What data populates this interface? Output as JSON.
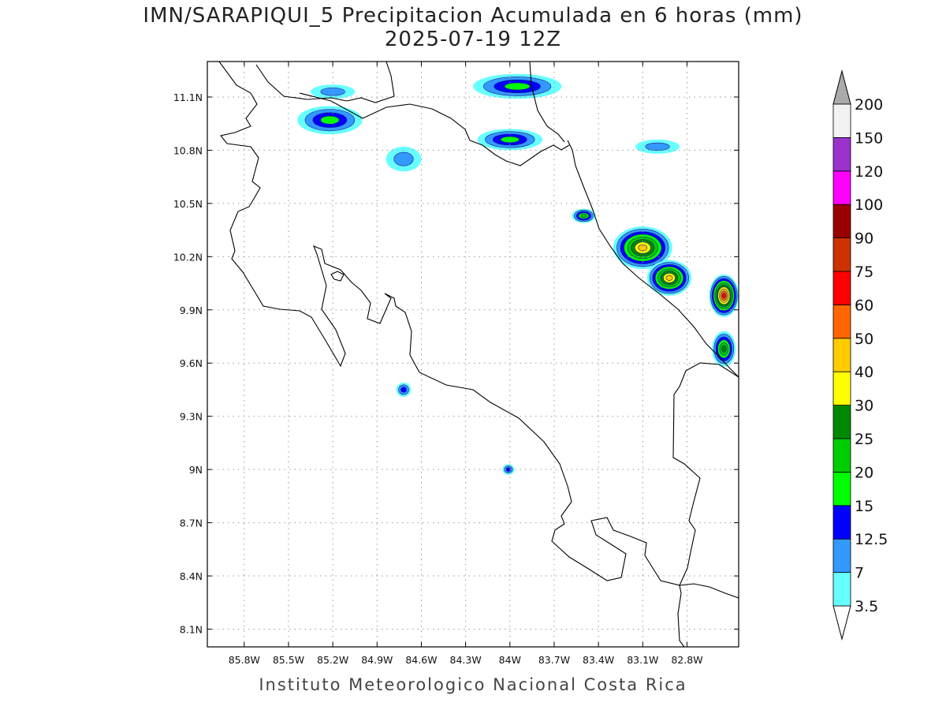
{
  "title": "IMN/SARAPIQUI_5 Precipitacion Acumulada en 6 horas (mm)",
  "subtitle": "2025-07-19 12Z",
  "footer": "Instituto Meteorologico Nacional Costa Rica",
  "map": {
    "lon_range": [
      -86.05,
      -82.45
    ],
    "lat_range": [
      8.0,
      11.3
    ],
    "lat_ticks": [
      {
        "value": 11.1,
        "label": "11.1N"
      },
      {
        "value": 10.8,
        "label": "10.8N"
      },
      {
        "value": 10.5,
        "label": "10.5N"
      },
      {
        "value": 10.2,
        "label": "10.2N"
      },
      {
        "value": 9.9,
        "label": "9.9N"
      },
      {
        "value": 9.6,
        "label": "9.6N"
      },
      {
        "value": 9.3,
        "label": "9.3N"
      },
      {
        "value": 9.0,
        "label": "9N"
      },
      {
        "value": 8.7,
        "label": "8.7N"
      },
      {
        "value": 8.4,
        "label": "8.4N"
      },
      {
        "value": 8.1,
        "label": "8.1N"
      }
    ],
    "lon_ticks": [
      {
        "value": -85.8,
        "label": "85.8W"
      },
      {
        "value": -85.5,
        "label": "85.5W"
      },
      {
        "value": -85.2,
        "label": "85.2W"
      },
      {
        "value": -84.9,
        "label": "84.9W"
      },
      {
        "value": -84.6,
        "label": "84.6W"
      },
      {
        "value": -84.3,
        "label": "84.3W"
      },
      {
        "value": -84.0,
        "label": "84W"
      },
      {
        "value": -83.7,
        "label": "83.7W"
      },
      {
        "value": -83.4,
        "label": "83.4W"
      },
      {
        "value": -83.1,
        "label": "83.1W"
      },
      {
        "value": -82.8,
        "label": "82.8W"
      }
    ],
    "grid": true
  },
  "colorbar": {
    "levels": [
      {
        "label": "3.5",
        "color": "#66ffff"
      },
      {
        "label": "7",
        "color": "#3399ff"
      },
      {
        "label": "12.5",
        "color": "#0000ff"
      },
      {
        "label": "15",
        "color": "#00ff00"
      },
      {
        "label": "20",
        "color": "#00cc00"
      },
      {
        "label": "25",
        "color": "#008800"
      },
      {
        "label": "30",
        "color": "#ffff00"
      },
      {
        "label": "40",
        "color": "#ffcc00"
      },
      {
        "label": "50",
        "color": "#ff6600"
      },
      {
        "label": "60",
        "color": "#ff0000"
      },
      {
        "label": "75",
        "color": "#cc3300"
      },
      {
        "label": "90",
        "color": "#990000"
      },
      {
        "label": "100",
        "color": "#ff00ff"
      },
      {
        "label": "120",
        "color": "#9933cc"
      },
      {
        "label": "150",
        "color": "#f2f2f2"
      },
      {
        "label": "200",
        "color": "#aaaaaa"
      }
    ]
  },
  "precip_cells": [
    {
      "lon": -85.22,
      "lat": 10.97,
      "rx": 0.22,
      "ry": 0.08,
      "level": 3
    },
    {
      "lon": -85.2,
      "lat": 11.13,
      "rx": 0.15,
      "ry": 0.04,
      "level": 1
    },
    {
      "lon": -84.72,
      "lat": 10.75,
      "rx": 0.12,
      "ry": 0.07,
      "level": 1
    },
    {
      "lon": -83.95,
      "lat": 11.16,
      "rx": 0.3,
      "ry": 0.07,
      "level": 3
    },
    {
      "lon": -84.0,
      "lat": 10.86,
      "rx": 0.22,
      "ry": 0.06,
      "level": 3
    },
    {
      "lon": -83.5,
      "lat": 10.43,
      "rx": 0.08,
      "ry": 0.04,
      "level": 4
    },
    {
      "lon": -83.1,
      "lat": 10.25,
      "rx": 0.2,
      "ry": 0.12,
      "level": 7
    },
    {
      "lon": -82.92,
      "lat": 10.08,
      "rx": 0.15,
      "ry": 0.1,
      "level": 7
    },
    {
      "lon": -82.55,
      "lat": 9.98,
      "rx": 0.1,
      "ry": 0.12,
      "level": 9
    },
    {
      "lon": -82.55,
      "lat": 9.68,
      "rx": 0.08,
      "ry": 0.1,
      "level": 5
    },
    {
      "lon": -83.0,
      "lat": 10.82,
      "rx": 0.15,
      "ry": 0.04,
      "level": 1
    },
    {
      "lon": -84.72,
      "lat": 9.45,
      "rx": 0.05,
      "ry": 0.04,
      "level": 2
    },
    {
      "lon": -84.01,
      "lat": 9.0,
      "rx": 0.04,
      "ry": 0.03,
      "level": 2
    }
  ]
}
